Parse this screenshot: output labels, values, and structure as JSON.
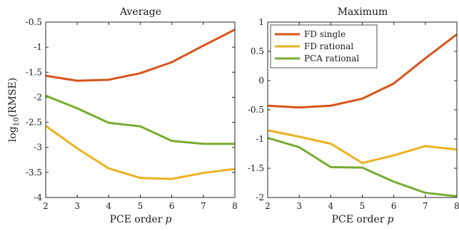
{
  "chart_data": [
    {
      "type": "line",
      "title": "Average",
      "xlabel": "PCE order",
      "xlabel_var": "p",
      "ylabel_prefix": "log",
      "ylabel_sub": "10",
      "ylabel_suffix": "(RMSE)",
      "x": [
        2,
        3,
        4,
        5,
        6,
        7,
        8
      ],
      "xlim": [
        2,
        8
      ],
      "ylim": [
        -4,
        -0.5
      ],
      "xticks": [
        2,
        3,
        4,
        5,
        6,
        7,
        8
      ],
      "yticks": [
        -4,
        -3.5,
        -3,
        -2.5,
        -2,
        -1.5,
        -1,
        -0.5
      ],
      "grid": false,
      "series": [
        {
          "name": "FD single",
          "color": "#D95319",
          "values": [
            -1.57,
            -1.67,
            -1.65,
            -1.52,
            -1.3,
            -0.97,
            -0.65
          ]
        },
        {
          "name": "FD rational",
          "color": "#EDB120",
          "values": [
            -2.57,
            -3.02,
            -3.42,
            -3.61,
            -3.63,
            -3.51,
            -3.43
          ]
        },
        {
          "name": "PCA rational",
          "color": "#77AC30",
          "values": [
            -1.97,
            -2.22,
            -2.51,
            -2.58,
            -2.87,
            -2.93,
            -2.93
          ]
        }
      ]
    },
    {
      "type": "line",
      "title": "Maximum",
      "xlabel": "PCE order",
      "xlabel_var": "p",
      "x": [
        2,
        3,
        4,
        5,
        6,
        7,
        8
      ],
      "xlim": [
        2,
        8
      ],
      "ylim": [
        -2,
        1
      ],
      "xticks": [
        2,
        3,
        4,
        5,
        6,
        7,
        8
      ],
      "yticks": [
        -2,
        -1.5,
        -1,
        -0.5,
        0,
        0.5,
        1
      ],
      "grid": false,
      "legend": "top-left",
      "series": [
        {
          "name": "FD single",
          "color": "#D95319",
          "values": [
            -0.43,
            -0.46,
            -0.43,
            -0.31,
            -0.05,
            0.38,
            0.79
          ]
        },
        {
          "name": "FD rational",
          "color": "#EDB120",
          "values": [
            -0.85,
            -0.96,
            -1.08,
            -1.41,
            -1.28,
            -1.12,
            -1.18
          ]
        },
        {
          "name": "PCA rational",
          "color": "#77AC30",
          "values": [
            -0.98,
            -1.14,
            -1.48,
            -1.49,
            -1.73,
            -1.92,
            -1.98
          ]
        }
      ]
    }
  ]
}
